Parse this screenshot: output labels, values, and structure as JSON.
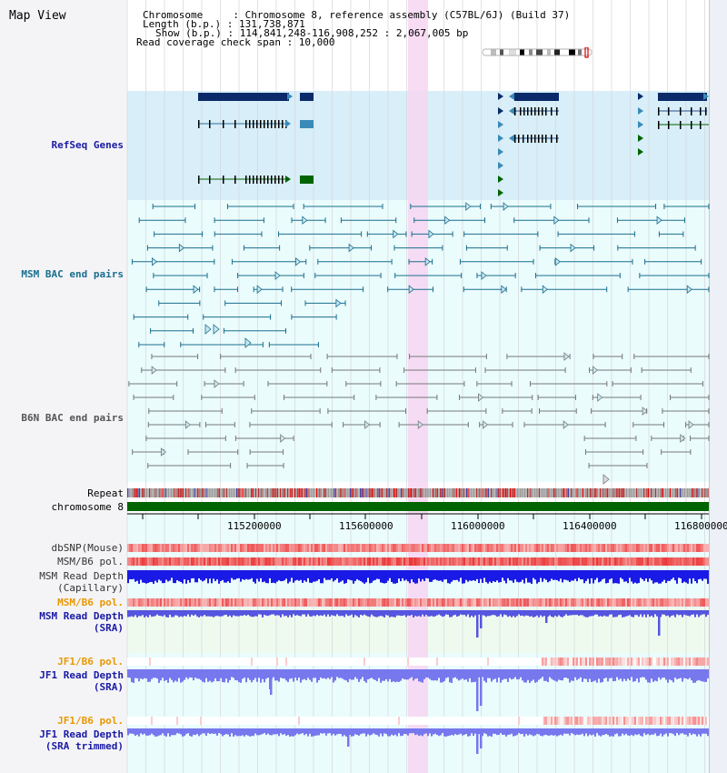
{
  "header": {
    "title": "Map View",
    "info_lines": [
      "Chromosome     : Chromosome 8, reference assembly (C57BL/6J) (Build 37)",
      "Length (b.p.) : 131,738,871",
      "Show (b.p.) : 114,841,248-116,908,252 : 2,067,005 bp",
      "Read coverage check span : 10,000"
    ]
  },
  "tracks": {
    "refseq": "RefSeq Genes",
    "msm_bac": "MSM BAC end pairs",
    "b6n_bac": "B6N BAC end pairs",
    "repeat": "Repeat",
    "chromosome": "chromosome 8",
    "dbsnp": "dbSNP(Mouse)",
    "msm_pol1": "MSM/B6 pol.",
    "msm_depth_cap": "MSM Read Depth\n(Capillary)",
    "msm_pol2": "MSM/B6 pol.",
    "msm_depth_sra": "MSM Read Depth\n(SRA)",
    "jf1_pol1": "JF1/B6 pol.",
    "jf1_depth_sra": "JF1 Read Depth\n(SRA)",
    "jf1_pol2": "JF1/B6 pol.",
    "jf1_depth_trim": "JF1 Read Depth\n(SRA trimmed)"
  },
  "axis": {
    "ticks": [
      "115200000",
      "115600000",
      "116000000",
      "116400000",
      "116800000"
    ]
  },
  "colors": {
    "refseq_bg": "#d8eef8",
    "bac_bg": "#eafcfc",
    "highlight": "#f7d6f2",
    "gene_dark": "#0a2a6a",
    "gene_mid": "#3a8ab8",
    "gene_green": "#006400",
    "msm_pair": "#1a6e8e",
    "b6n_pair": "#777777",
    "depth_blue": "#1a1ae6",
    "depth_light": "#7777ee",
    "chrom_green": "#006400",
    "label_blue": "#1a1aa6",
    "label_teal": "#1a6e8e",
    "label_orange": "#e89800",
    "label_gray": "#555555"
  }
}
